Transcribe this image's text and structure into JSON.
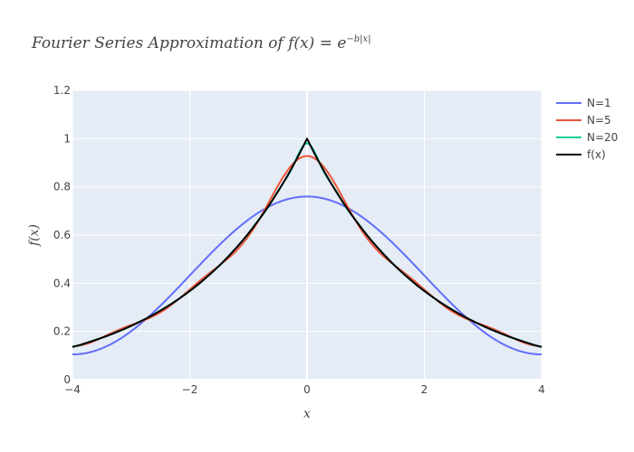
{
  "chart_data": {
    "type": "line",
    "title": "Fourier Series Approximation of f(x) = e^{-b|x|}",
    "title_parts": {
      "text": "Fourier Series Approximation of ",
      "fx": "f(x) = e",
      "sup": "−b|x|"
    },
    "xlabel": "x",
    "ylabel": "f(x)",
    "xlim": [
      -4,
      4
    ],
    "ylim": [
      0,
      1.2
    ],
    "xticks": [
      -4,
      -2,
      0,
      2,
      4
    ],
    "xtick_labels": [
      "−4",
      "−2",
      "0",
      "2",
      "4"
    ],
    "yticks": [
      0,
      0.2,
      0.4,
      0.6,
      0.8,
      1,
      1.2
    ],
    "ytick_labels": [
      "0",
      "0.2",
      "0.4",
      "0.6",
      "0.8",
      "1",
      "1.2"
    ],
    "grid": true,
    "legend_position": "top-right",
    "background_color": "#e5ecf6",
    "series": [
      {
        "name": "N=1",
        "color": "#636efa",
        "formula": "fourier",
        "N": 1,
        "b": 0.5,
        "L": 4
      },
      {
        "name": "N=5",
        "color": "#ef553b",
        "formula": "fourier",
        "N": 5,
        "b": 0.5,
        "L": 4
      },
      {
        "name": "N=20",
        "color": "#00cc96",
        "formula": "fourier",
        "N": 20,
        "b": 0.5,
        "L": 4
      },
      {
        "name": "f(x)",
        "color": "#000000",
        "formula": "exact",
        "b": 0.5
      }
    ]
  }
}
